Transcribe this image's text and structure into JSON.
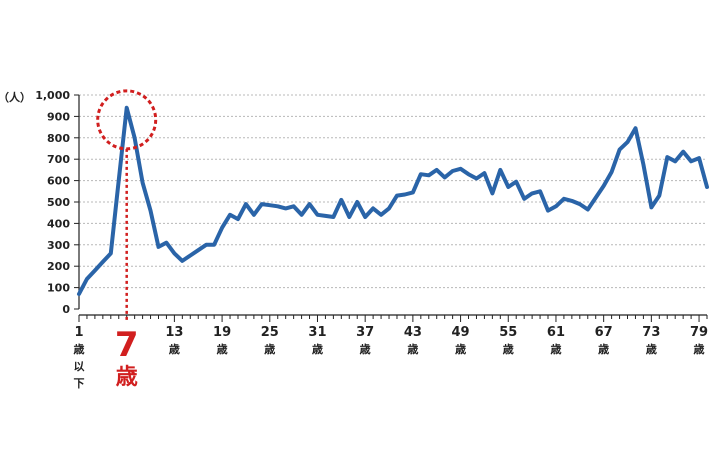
{
  "chart_data": {
    "type": "line",
    "y_unit_label": "（人）",
    "yticks": [
      0,
      100,
      200,
      300,
      400,
      500,
      600,
      700,
      800,
      900,
      1000
    ],
    "ytick_labels": [
      "0",
      "100",
      "200",
      "300",
      "400",
      "500",
      "600",
      "700",
      "800",
      "900",
      "1,000"
    ],
    "ylim": [
      0,
      1000
    ],
    "xlim": [
      1,
      80
    ],
    "grid": true,
    "x_tick_labels": [
      {
        "x": 1,
        "lines": [
          "1",
          "歳",
          "以",
          "下"
        ]
      },
      {
        "x": 13,
        "lines": [
          "13",
          "歳"
        ]
      },
      {
        "x": 19,
        "lines": [
          "19",
          "歳"
        ]
      },
      {
        "x": 25,
        "lines": [
          "25",
          "歳"
        ]
      },
      {
        "x": 31,
        "lines": [
          "31",
          "歳"
        ]
      },
      {
        "x": 37,
        "lines": [
          "37",
          "歳"
        ]
      },
      {
        "x": 43,
        "lines": [
          "43",
          "歳"
        ]
      },
      {
        "x": 49,
        "lines": [
          "49",
          "歳"
        ]
      },
      {
        "x": 55,
        "lines": [
          "55",
          "歳"
        ]
      },
      {
        "x": 61,
        "lines": [
          "61",
          "歳"
        ]
      },
      {
        "x": 67,
        "lines": [
          "67",
          "歳"
        ]
      },
      {
        "x": 73,
        "lines": [
          "73",
          "歳"
        ]
      },
      {
        "x": 79,
        "lines": [
          "79",
          "歳"
        ]
      }
    ],
    "highlight": {
      "x": 7,
      "value": 940,
      "number": "7",
      "unit": "歳"
    },
    "series": [
      {
        "color": "#2a64a8",
        "x": [
          1,
          2,
          3,
          4,
          5,
          6,
          7,
          8,
          9,
          10,
          11,
          12,
          13,
          14,
          15,
          16,
          17,
          18,
          19,
          20,
          21,
          22,
          23,
          24,
          25,
          26,
          27,
          28,
          29,
          30,
          31,
          32,
          33,
          34,
          35,
          36,
          37,
          38,
          39,
          40,
          41,
          42,
          43,
          44,
          45,
          46,
          47,
          48,
          49,
          50,
          51,
          52,
          53,
          54,
          55,
          56,
          57,
          58,
          59,
          60,
          61,
          62,
          63,
          64,
          65,
          66,
          67,
          68,
          69,
          70,
          71,
          72,
          73,
          74,
          75,
          76,
          77,
          78,
          79,
          80
        ],
        "values": [
          70,
          140,
          180,
          220,
          260,
          600,
          940,
          800,
          590,
          460,
          290,
          310,
          260,
          225,
          250,
          275,
          300,
          300,
          380,
          440,
          420,
          490,
          440,
          490,
          485,
          480,
          470,
          480,
          440,
          490,
          440,
          435,
          430,
          510,
          430,
          500,
          430,
          470,
          440,
          470,
          530,
          535,
          545,
          630,
          625,
          650,
          615,
          645,
          655,
          630,
          610,
          635,
          540,
          650,
          570,
          595,
          515,
          540,
          550,
          460,
          480,
          515,
          505,
          490,
          465,
          520,
          575,
          640,
          745,
          780,
          845,
          675,
          475,
          530,
          710,
          690,
          735,
          690,
          705,
          570
        ]
      }
    ],
    "colors": {
      "line": "#2a64a8",
      "highlight": "#d11f1f",
      "grid": "#b8b8b8",
      "axis": "#222222",
      "text": "#222222"
    }
  }
}
